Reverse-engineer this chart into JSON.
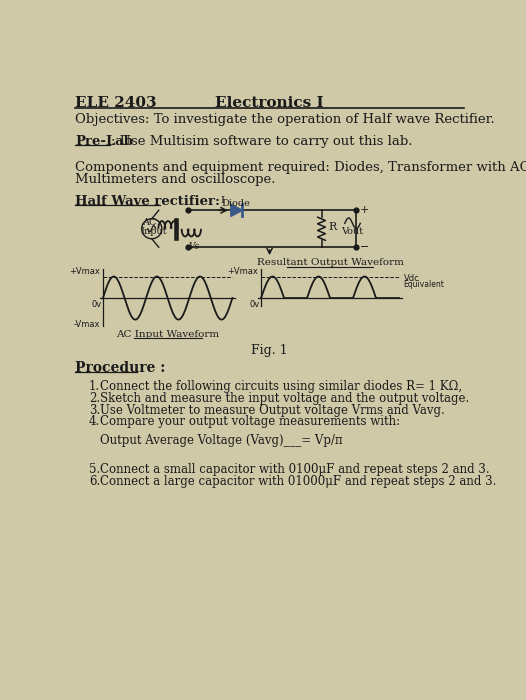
{
  "bg_color": "#d0c9a8",
  "title_left": "ELE 2403",
  "title_center": "Electronics I",
  "objectives": "Objectives: To investigate the operation of Half wave Rectifier.",
  "prelab_bold": "Pre-Lab",
  "prelab_rest": ": Use Multisim software to carry out this lab.",
  "components_line1": "Components and equipment required: Diodes, Transformer with AC source,",
  "components_line2": "Multimeters and oscilloscope.",
  "half_wave": "Half Wave rectifier:",
  "fig_label": "Fig. 1",
  "ac_input_waveform": "AC Input Waveform",
  "resultant_output": "Resultant Output Waveform",
  "procedure_title": "Procedure :",
  "proc_items": [
    "Connect the following circuits using similar diodes R= 1 KΩ,",
    "Sketch and measure the input voltage and the output voltage.",
    "Use Voltmeter to measure Output voltage Vrms and Vavg.",
    "Compare your output voltage measurements with:"
  ],
  "avg_voltage": "Output Average Voltage (Vavg)___= Vp/π",
  "proc_item5": "Connect a small capacitor with 0100μF and repeat steps 2 and 3.",
  "proc_item6": "Connect a large capacitor with 01000μF and repeat steps 2 and 3.",
  "text_color": "#1a1a1a",
  "line_color": "#1a1a1a",
  "wave_color": "#1a1a1a",
  "diode_color": "#3a5a8a"
}
